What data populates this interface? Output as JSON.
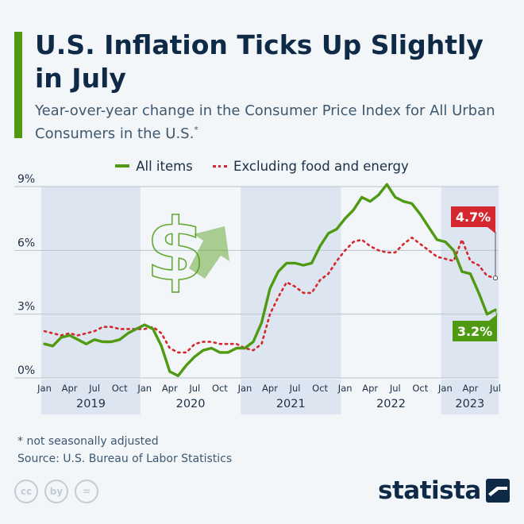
{
  "header": {
    "title": "U.S. Inflation Ticks Up Slightly in July",
    "subtitle": "Year-over-year change in the Consumer Price Index for All Urban Consumers in the U.S.",
    "subtitle_mark": "*"
  },
  "colors": {
    "all_items": "#4f9a12",
    "core": "#d4282e",
    "accent": "#4f9a12",
    "title": "#0f2a47",
    "year_band": "#dde6f0"
  },
  "chart_data": {
    "type": "line",
    "title": "U.S. Inflation Ticks Up Slightly in July",
    "ylabel": "",
    "xlabel": "",
    "ylim": [
      0,
      9
    ],
    "yticks": [
      "0%",
      "3%",
      "6%",
      "9%"
    ],
    "ytick_values": [
      0,
      3,
      6,
      9
    ],
    "x_ticks": [
      "Jan",
      "Apr",
      "Jul",
      "Oct",
      "Jan",
      "Apr",
      "Jul",
      "Oct",
      "Jan",
      "Apr",
      "Jul",
      "Oct",
      "Jan",
      "Apr",
      "Jul",
      "Oct",
      "Jan",
      "Apr",
      "Jul"
    ],
    "x_tick_month_index": [
      0,
      3,
      6,
      9,
      12,
      15,
      18,
      21,
      24,
      27,
      30,
      33,
      36,
      39,
      42,
      45,
      48,
      51,
      54
    ],
    "years": [
      "2019",
      "2020",
      "2021",
      "2022",
      "2023"
    ],
    "year_start_index": [
      0,
      12,
      24,
      36,
      48
    ],
    "series": [
      {
        "name": "All items",
        "style": "solid",
        "values": [
          1.6,
          1.5,
          1.9,
          2.0,
          1.8,
          1.6,
          1.8,
          1.7,
          1.7,
          1.8,
          2.1,
          2.3,
          2.5,
          2.3,
          1.5,
          0.3,
          0.1,
          0.6,
          1.0,
          1.3,
          1.4,
          1.2,
          1.2,
          1.4,
          1.4,
          1.7,
          2.6,
          4.2,
          5.0,
          5.4,
          5.4,
          5.3,
          5.4,
          6.2,
          6.8,
          7.0,
          7.5,
          7.9,
          8.5,
          8.3,
          8.6,
          9.1,
          8.5,
          8.3,
          8.2,
          7.7,
          7.1,
          6.5,
          6.4,
          6.0,
          5.0,
          4.9,
          4.0,
          3.0,
          3.2
        ]
      },
      {
        "name": "Excluding food and energy",
        "style": "dotted",
        "values": [
          2.2,
          2.1,
          2.0,
          2.1,
          2.0,
          2.1,
          2.2,
          2.4,
          2.4,
          2.3,
          2.3,
          2.3,
          2.3,
          2.4,
          2.1,
          1.4,
          1.2,
          1.2,
          1.6,
          1.7,
          1.7,
          1.6,
          1.6,
          1.6,
          1.4,
          1.3,
          1.6,
          3.0,
          3.8,
          4.5,
          4.3,
          4.0,
          4.0,
          4.6,
          4.9,
          5.5,
          6.0,
          6.4,
          6.5,
          6.2,
          6.0,
          5.9,
          5.9,
          6.3,
          6.6,
          6.3,
          6.0,
          5.7,
          5.6,
          5.5,
          6.5,
          5.5,
          5.3,
          4.8,
          4.7
        ]
      }
    ],
    "annotations": [
      {
        "series": "Excluding food and energy",
        "label": "4.7%",
        "color": "#d4282e"
      },
      {
        "series": "All items",
        "label": "3.2%",
        "color": "#4f9a12"
      }
    ],
    "legend": {
      "position": "top-center"
    }
  },
  "footer": {
    "note": "* not seasonally adjusted",
    "source": "Source: U.S. Bureau of Labor Statistics",
    "brand": "statista",
    "license_icons": [
      "cc",
      "by",
      "="
    ]
  }
}
